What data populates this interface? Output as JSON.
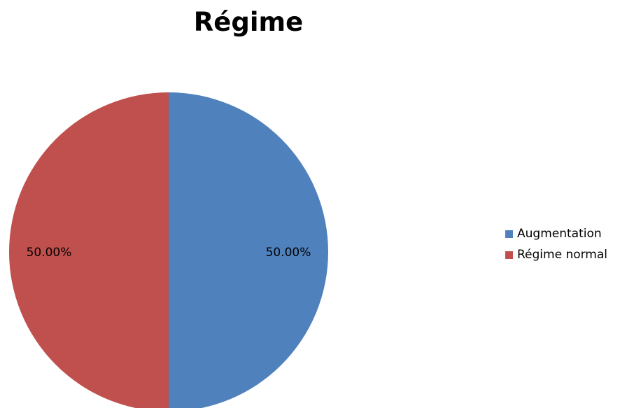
{
  "chart_data": {
    "type": "pie",
    "title": "Régime",
    "categories": [
      "Augmentation",
      "Régime normal"
    ],
    "values": [
      50.0,
      50.0
    ],
    "data_labels": [
      "50.00%",
      "50.00%"
    ],
    "colors": [
      "#4f81bd",
      "#c0504d"
    ],
    "legend_position": "right"
  }
}
